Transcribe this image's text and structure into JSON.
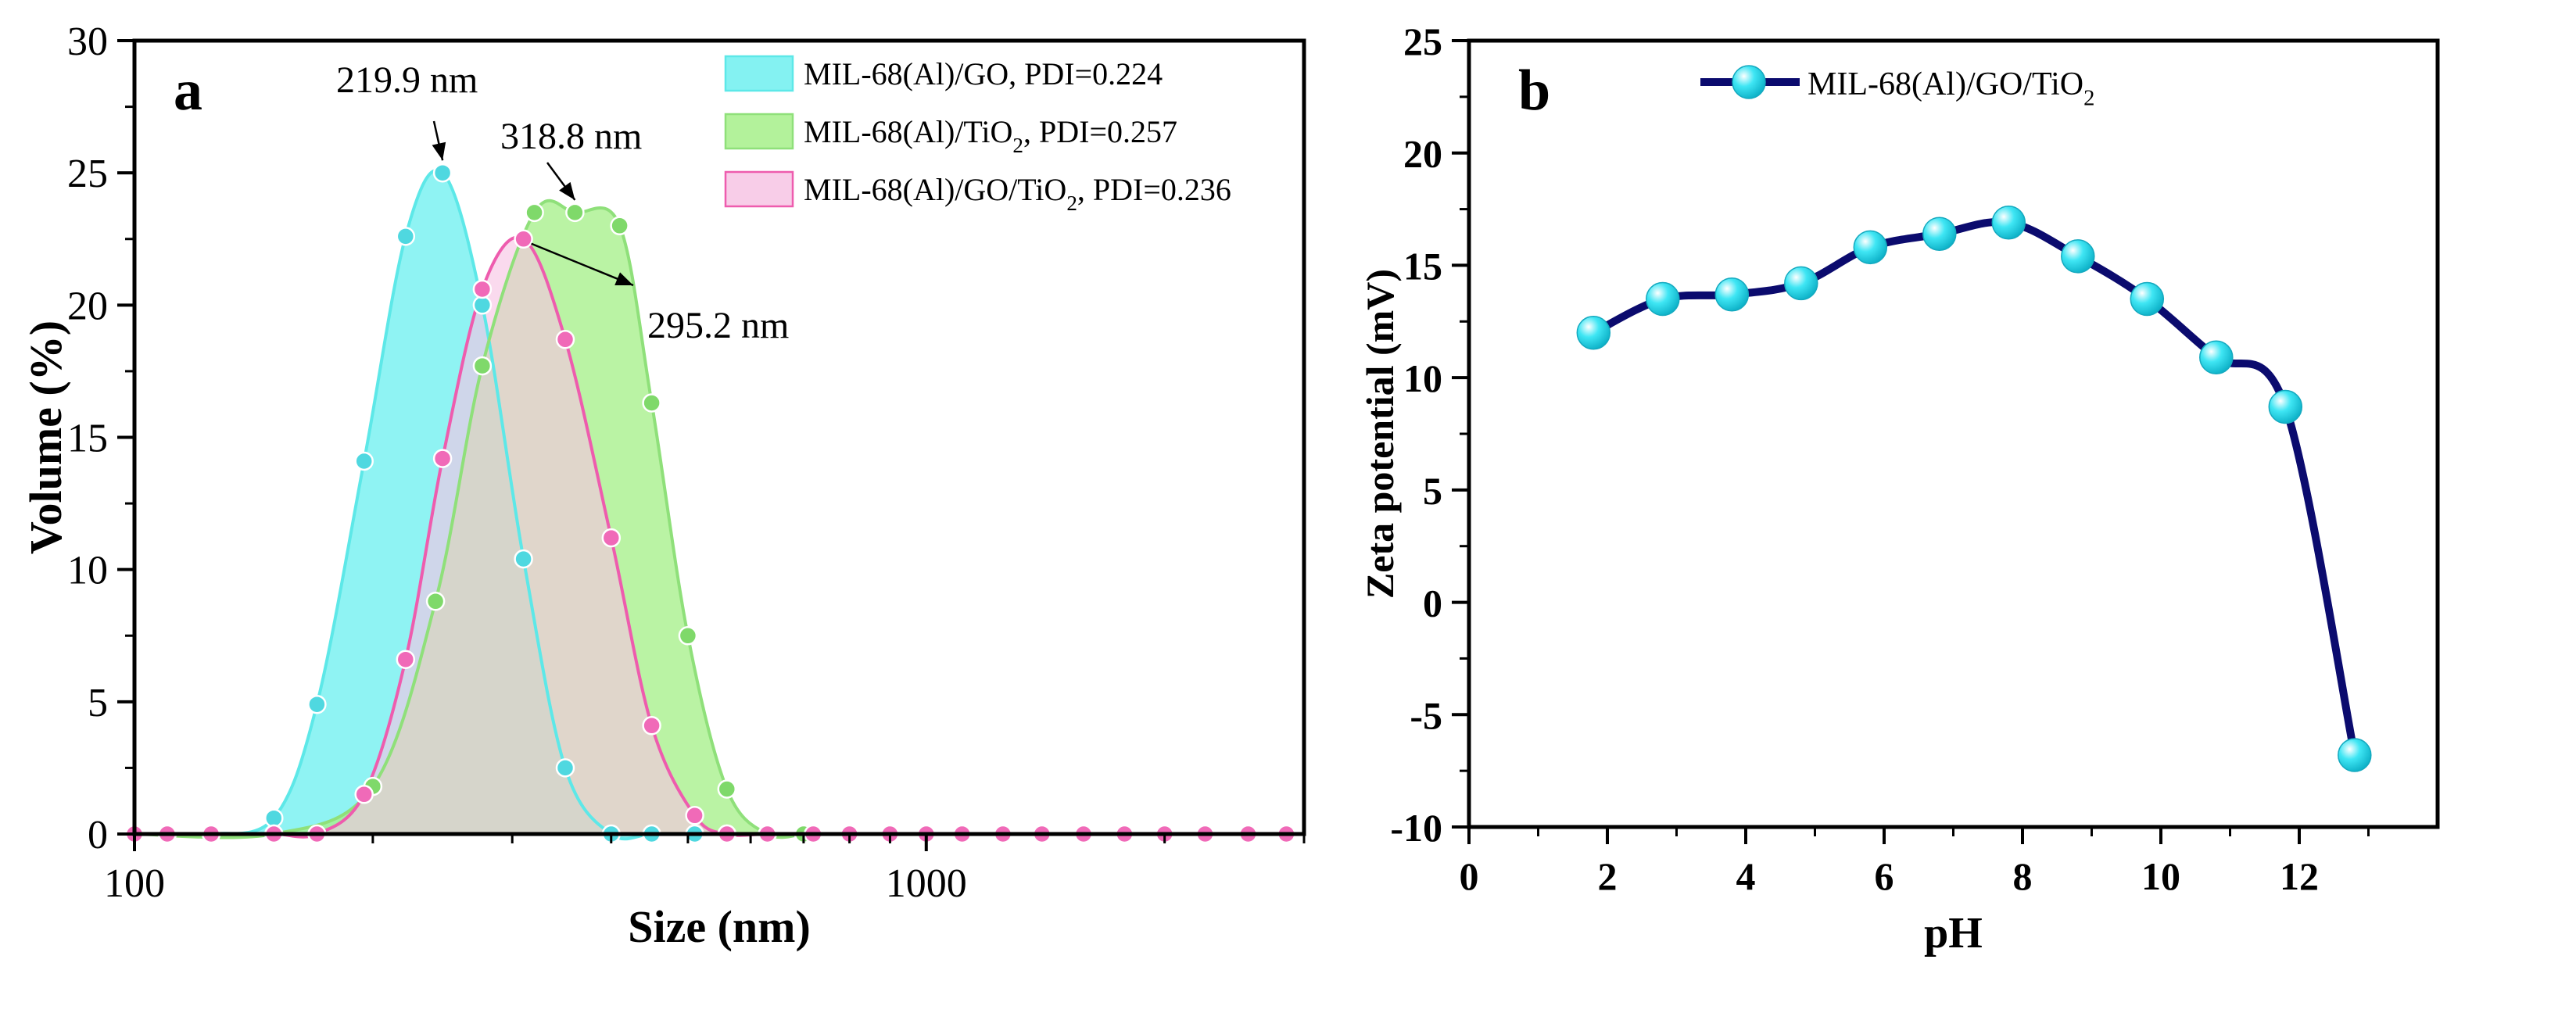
{
  "figure": {
    "panel_a_letter": "a",
    "panel_b_letter": "b"
  },
  "chart_data": [
    {
      "id": "a",
      "type": "area",
      "xscale": "log",
      "xlabel": "Size (nm)",
      "ylabel": "Volume (%)",
      "xlim": [
        100,
        3000
      ],
      "ylim": [
        0,
        30
      ],
      "xticks": [
        100,
        1000
      ],
      "yticks": [
        0,
        5,
        10,
        15,
        20,
        25,
        30
      ],
      "legend_position": "top-right",
      "series": [
        {
          "name": "MIL-68(Al)/GO, PDI=0.224",
          "legend_parts": [
            "MIL-68(Al)/GO, PDI=0.224"
          ],
          "fill": "#6ff0f0",
          "line": "#5de8e8",
          "marker": "#4fd8e0",
          "x": [
            100,
            110,
            125,
            150,
            170,
            195,
            220,
            245,
            275,
            310,
            350,
            400,
            450,
            510,
            560,
            630
          ],
          "y": [
            0,
            0,
            0,
            0.6,
            4.9,
            14.1,
            22.6,
            25.0,
            20.0,
            10.4,
            2.5,
            0,
            0,
            0,
            0,
            0
          ]
        },
        {
          "name": "MIL-68(Al)/TiO2, PDI=0.257",
          "legend_parts": [
            "MIL-68(Al)/TiO",
            "2",
            ", PDI=0.257"
          ],
          "fill": "#a6f08a",
          "line": "#8fe07a",
          "marker": "#7fd96a",
          "x": [
            100,
            150,
            200,
            240,
            275,
            320,
            360,
            410,
            450,
            500,
            560,
            630,
            700
          ],
          "y": [
            0,
            0,
            1.8,
            8.8,
            17.7,
            23.5,
            23.5,
            23.0,
            16.3,
            7.5,
            1.7,
            0,
            0
          ]
        },
        {
          "name": "MIL-68(Al)/GO/TiO2, PDI=0.236",
          "legend_parts": [
            "MIL-68(Al)/GO/TiO",
            "2",
            ", PDI=0.236"
          ],
          "fill": "#f7c4e4",
          "line": "#ee5cae",
          "marker": "#f06ab8",
          "x": [
            100,
            110,
            125,
            150,
            170,
            195,
            220,
            245,
            275,
            310,
            350,
            400,
            450,
            510,
            560,
            630,
            720,
            800,
            900,
            1000,
            1110,
            1250,
            1400,
            1580,
            1780,
            2000,
            2250,
            2550,
            2850
          ],
          "y": [
            0,
            0,
            0,
            0,
            0,
            1.5,
            6.6,
            14.2,
            20.6,
            22.5,
            18.7,
            11.2,
            4.1,
            0.7,
            0,
            0,
            0,
            0,
            0,
            0,
            0,
            0,
            0,
            0,
            0,
            0,
            0,
            0,
            0
          ]
        }
      ],
      "annotations": [
        {
          "text": "219.9 nm",
          "x": 245,
          "y": 25.0
        },
        {
          "text": "318.8 nm",
          "x": 360,
          "y": 23.5
        },
        {
          "text": "295.2 nm",
          "x": 310,
          "y": 22.5
        }
      ]
    },
    {
      "id": "b",
      "type": "line",
      "xlabel": "pH",
      "ylabel": "Zeta potential (mV)",
      "xlim": [
        0,
        14
      ],
      "ylim": [
        -10,
        25
      ],
      "xticks": [
        0,
        2,
        4,
        6,
        8,
        10,
        12
      ],
      "yticks": [
        -10,
        -5,
        0,
        5,
        10,
        15,
        20,
        25
      ],
      "legend_position": "top-left",
      "series": [
        {
          "name": "MIL-68(Al)/GO/TiO2",
          "legend_parts": [
            "MIL-68(Al)/GO/TiO",
            "2"
          ],
          "line": "#0b0b6e",
          "marker": "#35e3f2",
          "x": [
            1.8,
            2.8,
            3.8,
            4.8,
            5.8,
            6.8,
            7.8,
            8.8,
            9.8,
            10.8,
            11.8,
            12.8
          ],
          "y": [
            12.0,
            13.5,
            13.7,
            14.2,
            15.8,
            16.4,
            16.9,
            15.4,
            13.5,
            10.9,
            8.7,
            -6.8
          ]
        }
      ]
    }
  ]
}
